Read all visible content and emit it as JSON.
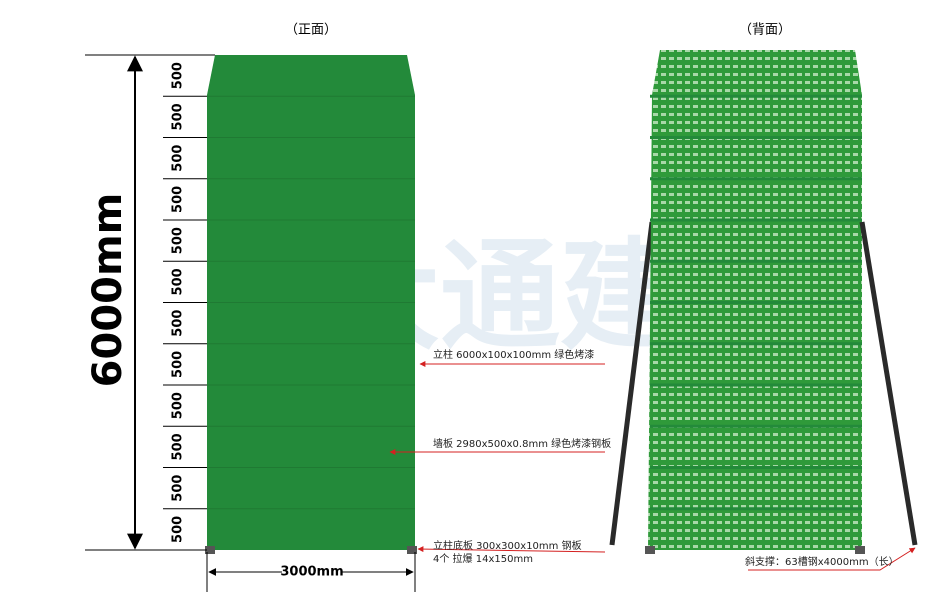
{
  "front": {
    "title": "（正面）",
    "height_label": "6000mm",
    "width_label": "3000mm",
    "segments": [
      "500",
      "500",
      "500",
      "500",
      "500",
      "500",
      "500",
      "500",
      "500",
      "500",
      "500",
      "500"
    ],
    "watermark": "大通建材",
    "annotations": [
      "立柱 6000x100x100mm 绿色烤漆",
      "墙板 2980x500x0.8mm 绿色烤漆钢板",
      "立柱底板 300x300x10mm 钢板",
      "4个 拉爆 14x150mm"
    ]
  },
  "back": {
    "title": "（背面）",
    "annotation": "斜支撑：63槽钢x4000mm（长）"
  }
}
